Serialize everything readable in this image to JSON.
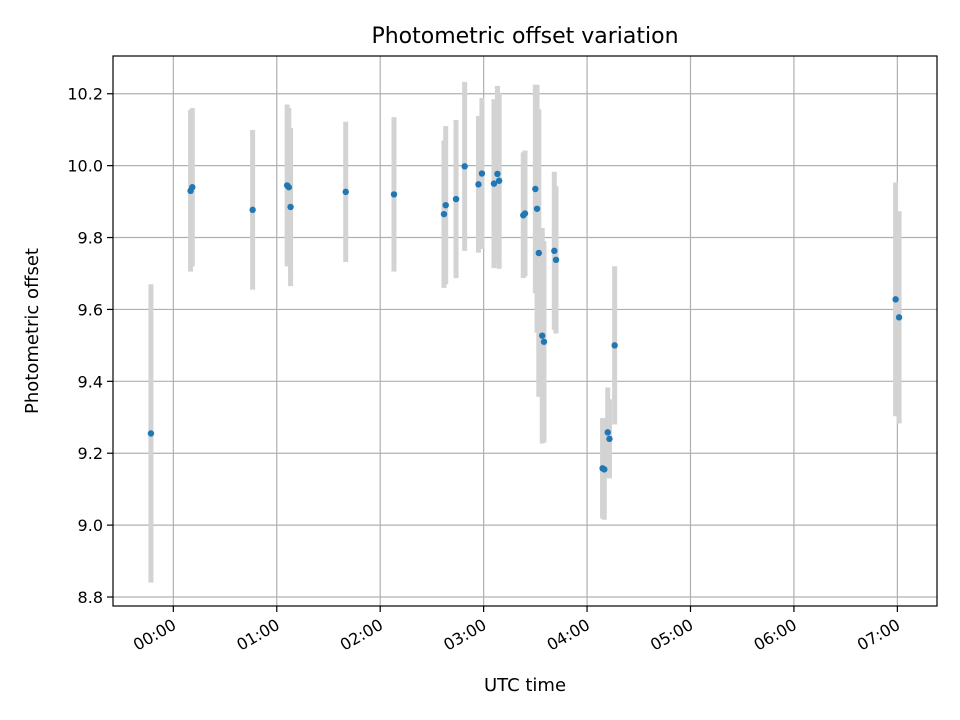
{
  "chart_data": {
    "type": "scatter",
    "title": "Photometric offset variation",
    "xlabel": "UTC time",
    "ylabel": "Photometric offset",
    "xlim": [
      "23:25",
      "07:23"
    ],
    "ylim": [
      8.775,
      10.305
    ],
    "grid": true,
    "x_ticks": [
      "00:00",
      "01:00",
      "02:00",
      "03:00",
      "04:00",
      "05:00",
      "06:00",
      "07:00"
    ],
    "y_ticks": [
      "8.8",
      "9.0",
      "9.2",
      "9.4",
      "9.6",
      "9.8",
      "10.0",
      "10.2"
    ],
    "colors": {
      "points": "#1f77b4",
      "errorbars": "#d3d3d3",
      "grid": "#b0b0b0"
    },
    "series": [
      {
        "points": [
          {
            "x": "23:47",
            "y": 9.255,
            "err": 0.415
          },
          {
            "x": "00:10",
            "y": 9.93,
            "err": 0.225
          },
          {
            "x": "00:11",
            "y": 9.94,
            "err": 0.22
          },
          {
            "x": "00:46",
            "y": 9.877,
            "err": 0.222
          },
          {
            "x": "01:06",
            "y": 9.945,
            "err": 0.225
          },
          {
            "x": "01:07",
            "y": 9.94,
            "err": 0.22
          },
          {
            "x": "01:08",
            "y": 9.885,
            "err": 0.22
          },
          {
            "x": "01:40",
            "y": 9.927,
            "err": 0.195
          },
          {
            "x": "02:08",
            "y": 9.92,
            "err": 0.215
          },
          {
            "x": "02:37",
            "y": 9.865,
            "err": 0.205
          },
          {
            "x": "02:38",
            "y": 9.89,
            "err": 0.22
          },
          {
            "x": "02:44",
            "y": 9.907,
            "err": 0.22
          },
          {
            "x": "02:49",
            "y": 9.998,
            "err": 0.235
          },
          {
            "x": "02:57",
            "y": 9.948,
            "err": 0.19
          },
          {
            "x": "02:59",
            "y": 9.978,
            "err": 0.21
          },
          {
            "x": "03:06",
            "y": 9.95,
            "err": 0.235
          },
          {
            "x": "03:08",
            "y": 9.977,
            "err": 0.245
          },
          {
            "x": "03:09",
            "y": 9.958,
            "err": 0.245
          },
          {
            "x": "03:23",
            "y": 9.862,
            "err": 0.175
          },
          {
            "x": "03:24",
            "y": 9.867,
            "err": 0.175
          },
          {
            "x": "03:30",
            "y": 9.935,
            "err": 0.29
          },
          {
            "x": "03:31",
            "y": 9.88,
            "err": 0.345
          },
          {
            "x": "03:32",
            "y": 9.757,
            "err": 0.4
          },
          {
            "x": "03:34",
            "y": 9.527,
            "err": 0.3
          },
          {
            "x": "03:35",
            "y": 9.51,
            "err": 0.28
          },
          {
            "x": "03:41",
            "y": 9.763,
            "err": 0.22
          },
          {
            "x": "03:42",
            "y": 9.738,
            "err": 0.205
          },
          {
            "x": "04:09",
            "y": 9.158,
            "err": 0.14
          },
          {
            "x": "04:10",
            "y": 9.155,
            "err": 0.14
          },
          {
            "x": "04:12",
            "y": 9.258,
            "err": 0.125
          },
          {
            "x": "04:13",
            "y": 9.24,
            "err": 0.11
          },
          {
            "x": "04:16",
            "y": 9.5,
            "err": 0.22
          },
          {
            "x": "06:59",
            "y": 9.628,
            "err": 0.325
          },
          {
            "x": "07:01",
            "y": 9.578,
            "err": 0.295
          }
        ]
      }
    ]
  }
}
